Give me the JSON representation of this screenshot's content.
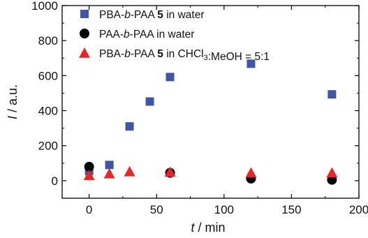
{
  "chart_data": {
    "type": "scatter",
    "xlabel_var": "t",
    "xlabel_unit": " / min",
    "ylabel_var": "I",
    "ylabel_unit": " / a.u.",
    "xlim": [
      -20,
      200
    ],
    "ylim": [
      -100,
      1000
    ],
    "xticks": [
      0,
      50,
      100,
      150,
      200
    ],
    "yticks": [
      0,
      200,
      400,
      600,
      800,
      1000
    ],
    "legend_position": "top-left",
    "series": [
      {
        "name": "PBA-b-PAA 5 in water",
        "legend_parts": [
          {
            "text": "PBA-",
            "style": "normal"
          },
          {
            "text": "b",
            "style": "italic"
          },
          {
            "text": "-PAA ",
            "style": "normal"
          },
          {
            "text": "5",
            "style": "bold"
          },
          {
            "text": " in water",
            "style": "normal"
          }
        ],
        "marker": "square",
        "color": "#3f55a8",
        "points": [
          [
            0,
            55
          ],
          [
            15,
            90
          ],
          [
            30,
            310
          ],
          [
            45,
            452
          ],
          [
            60,
            592
          ],
          [
            120,
            668
          ],
          [
            180,
            493
          ]
        ]
      },
      {
        "name": "PAA-b-PAA in water",
        "legend_parts": [
          {
            "text": "PAA-",
            "style": "normal"
          },
          {
            "text": "b",
            "style": "italic"
          },
          {
            "text": "-PAA in water",
            "style": "normal"
          }
        ],
        "marker": "circle",
        "color": "#000000",
        "points": [
          [
            0,
            80
          ],
          [
            60,
            45
          ],
          [
            120,
            12
          ],
          [
            180,
            5
          ]
        ]
      },
      {
        "name": "PBA-b-PAA 5 in CHCl3:MeOH = 5:1",
        "legend_parts": [
          {
            "text": "PBA-",
            "style": "normal"
          },
          {
            "text": "b",
            "style": "italic"
          },
          {
            "text": "-PAA ",
            "style": "normal"
          },
          {
            "text": "5",
            "style": "bold"
          },
          {
            "text": " in CHCl",
            "style": "normal"
          },
          {
            "text": "3",
            "style": "sub"
          },
          {
            "text": ":MeOH = 5:1",
            "style": "normal"
          }
        ],
        "marker": "triangle",
        "color": "#e8262a",
        "points": [
          [
            0,
            30
          ],
          [
            15,
            40
          ],
          [
            30,
            52
          ],
          [
            60,
            50
          ],
          [
            120,
            45
          ],
          [
            180,
            45
          ]
        ]
      }
    ]
  }
}
